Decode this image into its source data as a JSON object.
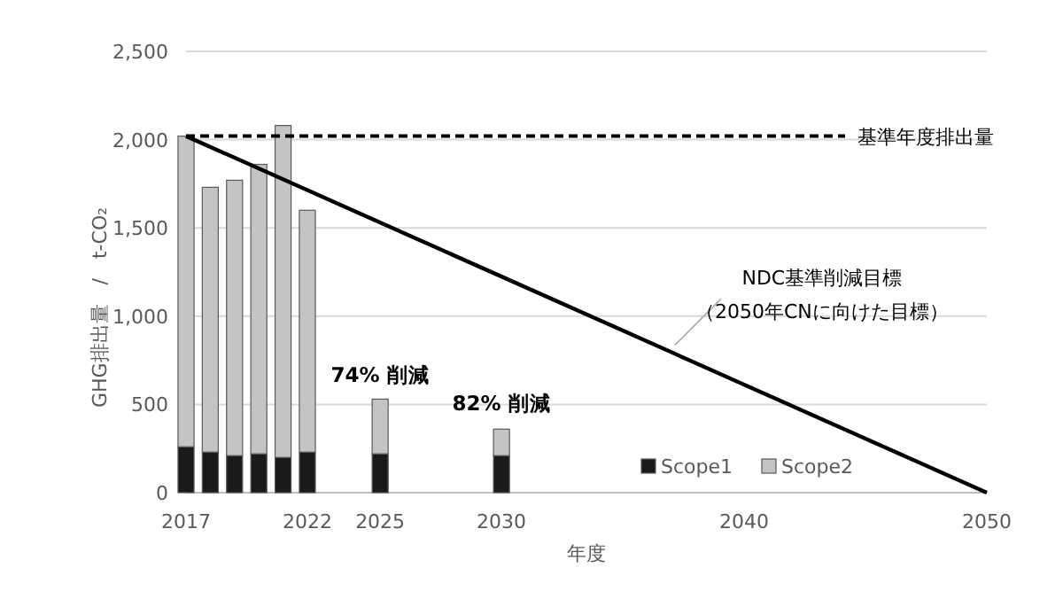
{
  "chart_data": {
    "type": "bar",
    "stacked": true,
    "xlabel": "年度",
    "ylabel": "GHG排出量　/　t-CO₂",
    "xlim": [
      2017,
      2050
    ],
    "xticks": [
      2017,
      2022,
      2025,
      2030,
      2040,
      2050
    ],
    "ylim": [
      0,
      2500
    ],
    "yticks": [
      0,
      {
        "value": 500,
        "label": "500"
      },
      {
        "value": 1000,
        "label": "1,000"
      },
      {
        "value": 1500,
        "label": "1,500"
      },
      {
        "value": 2000,
        "label": "2,000"
      },
      {
        "value": 2500,
        "label": "2,500"
      }
    ],
    "grid": "y",
    "legend": "bottom right",
    "series": [
      {
        "name": "Scope1",
        "color": "#1a1a1a",
        "x": [
          2017,
          2018,
          2019,
          2020,
          2021,
          2022,
          2025,
          2030
        ],
        "values": [
          260,
          230,
          210,
          220,
          200,
          230,
          220,
          210
        ]
      },
      {
        "name": "Scope2",
        "color": "#c4c4c4",
        "x": [
          2017,
          2018,
          2019,
          2020,
          2021,
          2022,
          2025,
          2030
        ],
        "values": [
          1760,
          1500,
          1560,
          1640,
          1880,
          1370,
          310,
          150
        ]
      },
      {
        "type": "line",
        "color": "#000000",
        "x": [
          2017,
          2050
        ],
        "values": [
          2020,
          0
        ]
      }
    ],
    "ref_lines": [
      {
        "axis": "y",
        "value": 2020,
        "label": "基準年度排出量",
        "color": "#000000",
        "line_style": "dashed"
      }
    ],
    "annotations": [
      {
        "text": "74% 削減",
        "x": 2025,
        "y": 525
      },
      {
        "text": "82% 削減",
        "x": 2030,
        "y": 364
      },
      {
        "text": "NDC基準削減目標",
        "x": 2037,
        "y": 796
      },
      {
        "text": "（2050年CNに向けた目標）",
        "x": 2037,
        "y": 796
      }
    ]
  }
}
